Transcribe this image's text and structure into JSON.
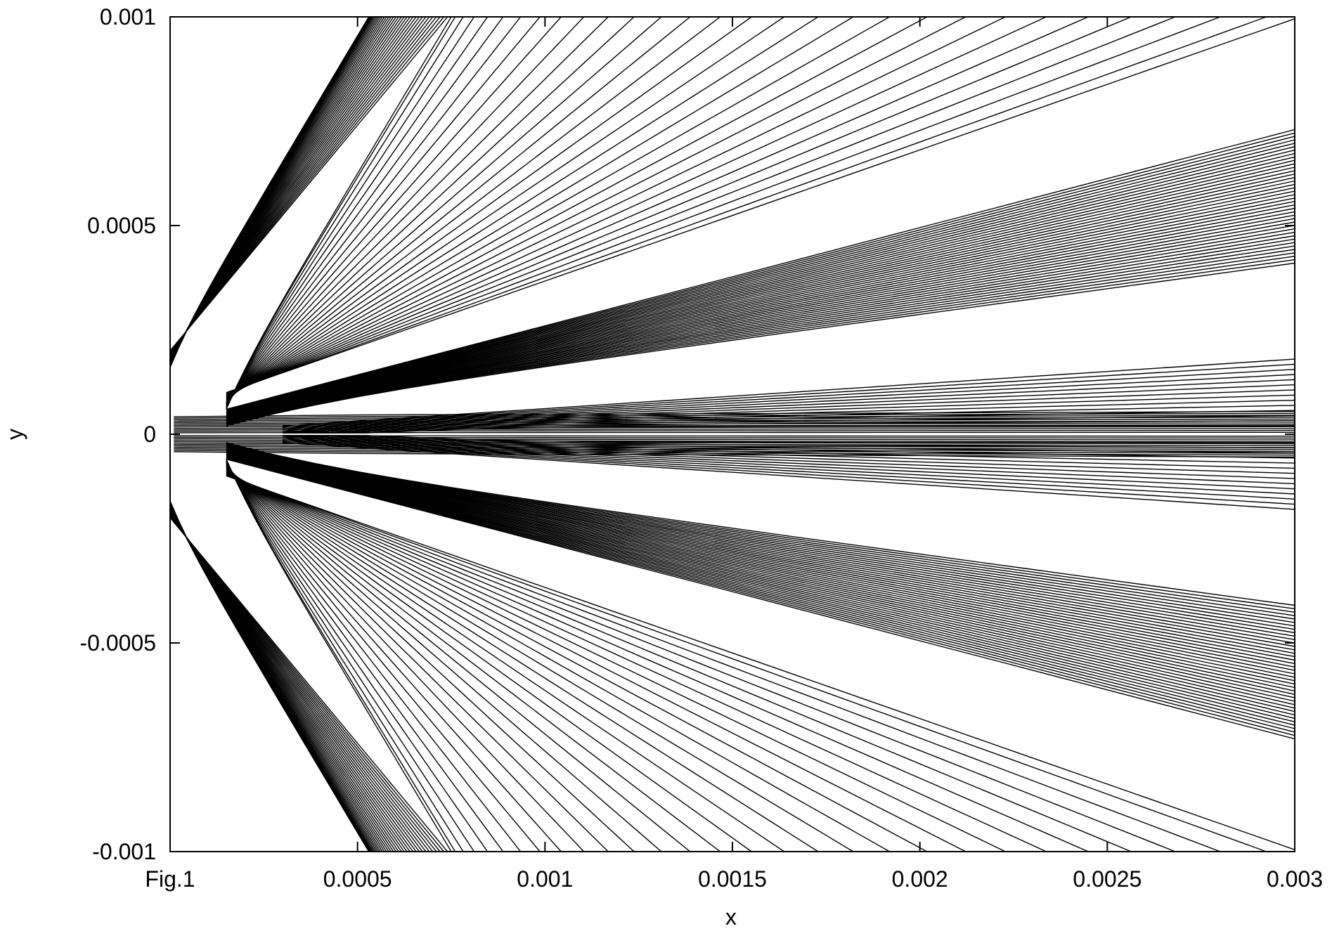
{
  "chart_data": {
    "type": "line",
    "title": "",
    "xlabel": "x",
    "ylabel": "y",
    "xlim": [
      0,
      0.003
    ],
    "ylim": [
      -0.001,
      0.001
    ],
    "x_ticks": [
      {
        "value": 0,
        "label": "Fig.1"
      },
      {
        "value": 0.0005,
        "label": "0.0005"
      },
      {
        "value": 0.001,
        "label": "0.001"
      },
      {
        "value": 0.0015,
        "label": "0.0015"
      },
      {
        "value": 0.002,
        "label": "0.002"
      },
      {
        "value": 0.0025,
        "label": "0.0025"
      },
      {
        "value": 0.003,
        "label": "0.003"
      }
    ],
    "y_ticks": [
      {
        "value": -0.001,
        "label": "-0.001"
      },
      {
        "value": -0.0005,
        "label": "-0.0005"
      },
      {
        "value": 0,
        "label": "0"
      },
      {
        "value": 0.0005,
        "label": "0.0005"
      },
      {
        "value": 0.001,
        "label": "0.001"
      }
    ],
    "grid": false,
    "line_color": "#000000",
    "symmetry": "mirror about y = 0",
    "families": [
      {
        "group": "upper-steep-fan",
        "origin": {
          "x": 0,
          "y": 0.0002
        },
        "count": 34,
        "end_y_at_x_max": [
          0.001,
          0.001
        ],
        "top_crossing_x": [
          0.00053,
          0.00074
        ]
      },
      {
        "group": "upper-mid-fan",
        "origin": {
          "x": 0.00015,
          "y": 0.0001
        },
        "count": 30,
        "end_y_at_x_max": [
          0.00072,
          0.001
        ],
        "top_crossing_x": [
          0.00075,
          0.00305
        ]
      },
      {
        "group": "upper-dense-band",
        "origin": {
          "x": 0.00015,
          "y": 6e-05
        },
        "count": 40,
        "end_y_at_x_max": [
          0.00041,
          0.00073
        ]
      },
      {
        "group": "upper-near-axis",
        "origin": {
          "x": 0.0003,
          "y": 2e-05
        },
        "count": 14,
        "end_y_at_x_max": [
          2e-05,
          0.00018
        ]
      }
    ],
    "notable_levels_at_x_max": [
      0.00041,
      0.00073,
      0.00018,
      -0.00018,
      -0.00041,
      -0.00073
    ]
  }
}
